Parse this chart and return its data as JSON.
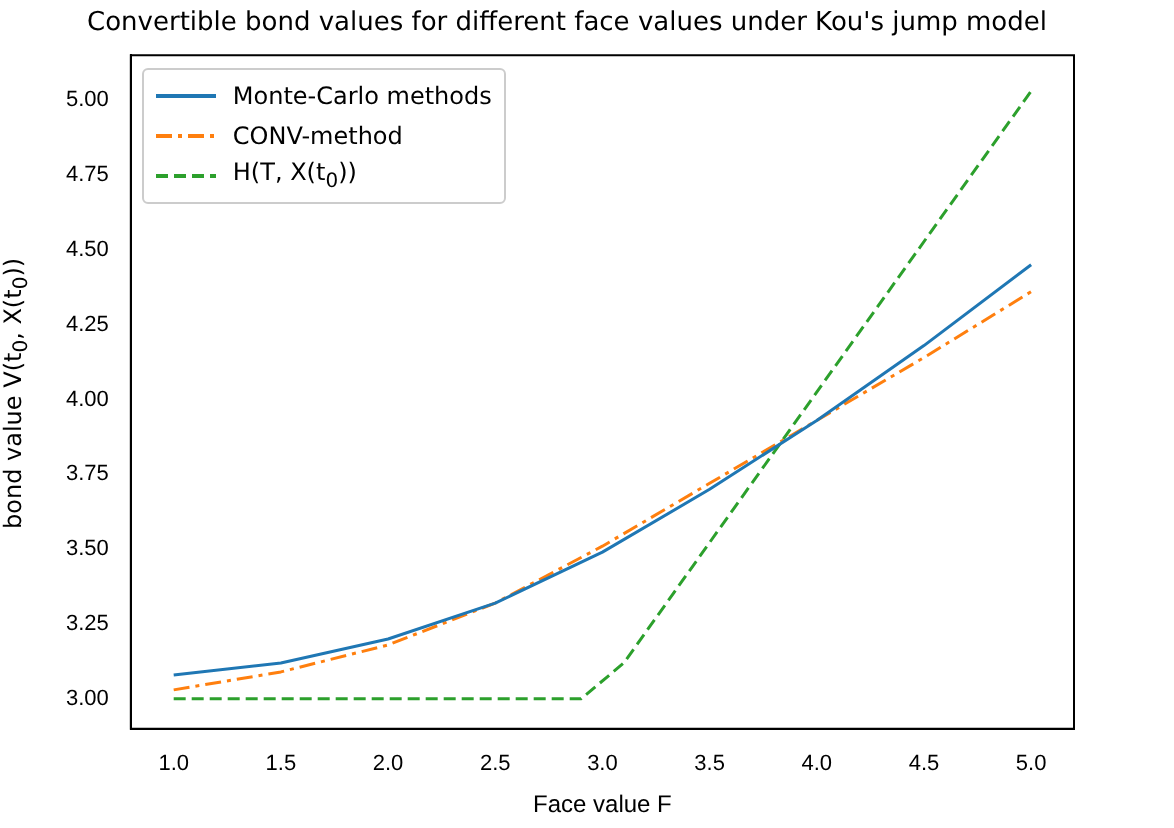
{
  "chart_data": {
    "type": "line",
    "title": "Convertible bond values for different face values under Kou's jump model",
    "xlabel": "Face value F",
    "ylabel": "bond value V(t$_{0}$, X(t$_{0}$))",
    "xlim": [
      0.8,
      5.2
    ],
    "xticks": [
      {
        "value": 1,
        "label": "1.0"
      },
      1.5,
      {
        "value": 2,
        "label": "2.0"
      },
      2.5,
      {
        "value": 3,
        "label": "3.0"
      },
      3.5,
      {
        "value": 4,
        "label": "4.0"
      },
      4.5,
      {
        "value": 5,
        "label": "5.0"
      }
    ],
    "ylim": [
      2.9,
      5.15
    ],
    "yticks": [
      {
        "value": 3,
        "label": "3.00"
      },
      3.25,
      {
        "value": 3.5,
        "label": "3.50"
      },
      3.75,
      {
        "value": 4,
        "label": "4.00"
      },
      4.25,
      {
        "value": 4.5,
        "label": "4.50"
      },
      4.75,
      {
        "value": 5,
        "label": "5.00"
      }
    ],
    "grid": false,
    "legend": "top left",
    "marker": "none",
    "series": [
      {
        "name": "Monte-Carlo methods",
        "color": "#1f77b4",
        "line_style": "solid",
        "x": [
          1.0,
          1.5,
          2.0,
          2.5,
          3.0,
          3.5,
          4.0,
          4.5,
          5.0
        ],
        "values": [
          3.08,
          3.12,
          3.2,
          3.32,
          3.49,
          3.7,
          3.93,
          4.18,
          4.45
        ]
      },
      {
        "name": "CONV-method",
        "color": "#ff7f0e",
        "line_style": "dashdot",
        "x": [
          1.0,
          1.5,
          2.0,
          2.5,
          3.0,
          3.5,
          4.0,
          4.5,
          5.0
        ],
        "values": [
          3.03,
          3.09,
          3.18,
          3.32,
          3.51,
          3.72,
          3.93,
          4.14,
          4.36
        ]
      },
      {
        "name": "H(T, X(t$_{0}$))",
        "color": "#2ca02c",
        "line_style": "dashed",
        "x": [
          1.0,
          2.9,
          3.1,
          5.0
        ],
        "values": [
          3.0,
          3.0,
          3.12,
          5.03
        ]
      }
    ]
  }
}
